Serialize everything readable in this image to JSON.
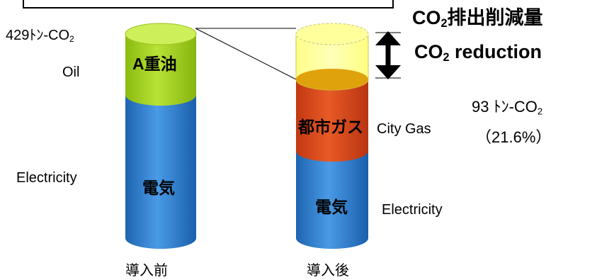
{
  "before": {
    "caption": "導入前",
    "total_prefix": "429ﾄﾝ-CO",
    "total_sub": "2",
    "oil_label_en": "Oil",
    "oil_label_jp": "A重油",
    "elec_label_en": "Electricity",
    "elec_label_jp": "電気",
    "colors": {
      "oil": "#9ccc1c",
      "electricity": "#2e7fd0"
    }
  },
  "after": {
    "caption": "導入後",
    "gas_label_jp": "都市ガス",
    "gas_label_en": "City Gas",
    "elec_label_jp": "電気",
    "elec_label_en": "Electricity",
    "colors": {
      "reduction": "#ffff80",
      "gas": "#d8461a",
      "electricity": "#2e7fd0"
    }
  },
  "reduction": {
    "title_jp_prefix": "CO",
    "title_jp_sub": "2",
    "title_jp_suffix": "排出削減量",
    "title_en_prefix": "CO",
    "title_en_sub": "2",
    "title_en_suffix": " reduction",
    "amount_prefix": "93 ﾄﾝ-CO",
    "amount_sub": "2",
    "percent": "（21.6%）"
  },
  "chart_data": {
    "type": "bar",
    "stacked": true,
    "categories": [
      "導入前",
      "導入後"
    ],
    "unit": "ﾄﾝ-CO2",
    "series": [
      {
        "name": "電気",
        "values": [
          315,
          183
        ]
      },
      {
        "name": "A重油",
        "values": [
          114,
          0
        ]
      },
      {
        "name": "都市ガス",
        "values": [
          0,
          153
        ]
      }
    ],
    "totals": [
      429,
      336
    ],
    "reduction": {
      "value": 93,
      "percent": 21.6
    }
  }
}
